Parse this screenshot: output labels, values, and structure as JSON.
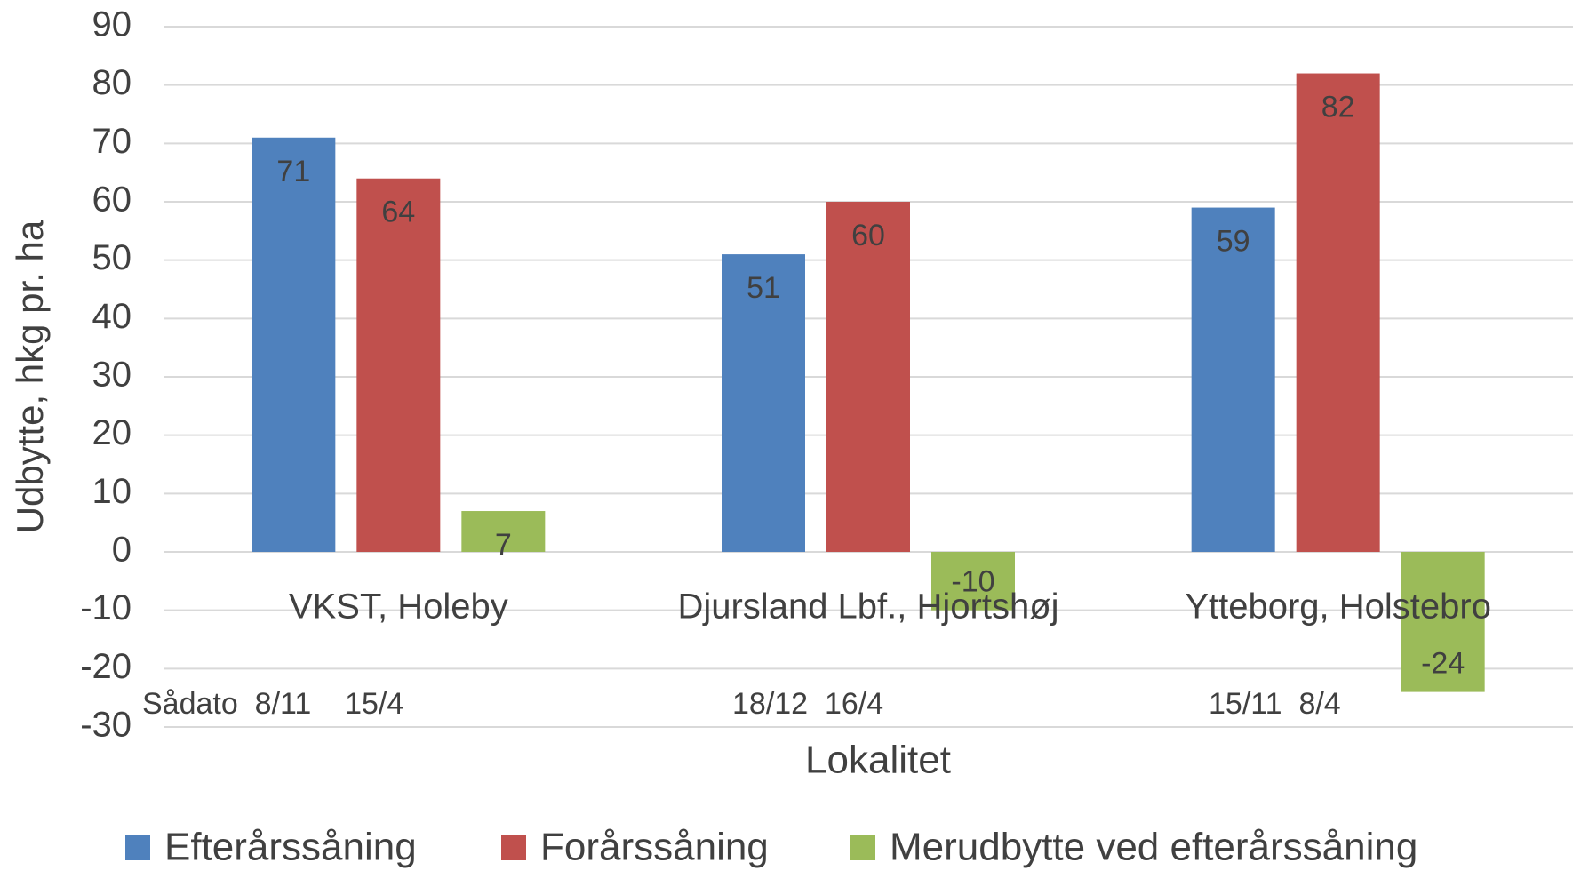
{
  "chart_data": {
    "type": "bar",
    "categories": [
      "VKST, Holeby",
      "Djursland Lbf., Hjortshøj",
      "Ytteborg, Holstebro"
    ],
    "series": [
      {
        "name": "Efterårssåning",
        "color": "#4f81bd",
        "values": [
          71,
          51,
          59
        ]
      },
      {
        "name": "Forårssåning",
        "color": "#c0504d",
        "values": [
          64,
          60,
          82
        ]
      },
      {
        "name": "Merudbytte ved efterårssåning",
        "color": "#9bbb59",
        "values": [
          7,
          -10,
          -24
        ]
      }
    ],
    "ylim": [
      -30,
      90
    ],
    "yticks": [
      -30,
      -20,
      -10,
      0,
      10,
      20,
      30,
      40,
      50,
      60,
      70,
      80,
      90
    ],
    "ylabel": "Udbytte, hkg pr. ha",
    "xlabel": "Lokalitet",
    "annotations": [
      "Sådato  8/11    15/4",
      "18/12  16/4",
      "15/11  8/4"
    ],
    "grid": true,
    "legend": "bottom"
  }
}
